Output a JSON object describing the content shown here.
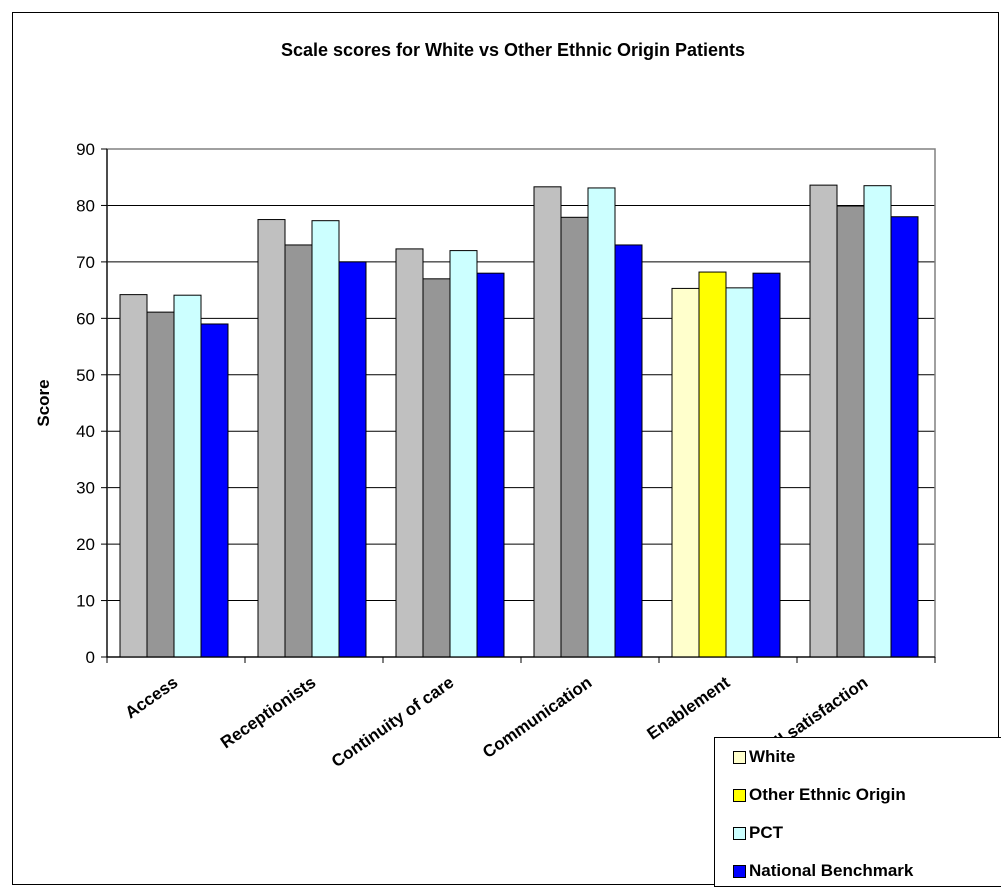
{
  "chart_data": {
    "type": "bar",
    "title": "Scale scores for White vs Other Ethnic Origin Patients",
    "ylabel": "Score",
    "xlabel": "",
    "ylim": [
      0,
      90
    ],
    "yticks": [
      "0",
      "10",
      "20",
      "30",
      "40",
      "50",
      "60",
      "70",
      "80",
      "90"
    ],
    "categories": [
      "Access",
      "Receptionists",
      "Continuity of care",
      "Communication",
      "Enablement",
      "Overall satisfaction"
    ],
    "series": [
      {
        "name": "White",
        "values": [
          64.2,
          77.5,
          72.3,
          83.3,
          65.3,
          83.6
        ]
      },
      {
        "name": "Other Ethnic Origin",
        "values": [
          61.1,
          73.0,
          67.0,
          77.9,
          68.2,
          79.9
        ]
      },
      {
        "name": "PCT",
        "values": [
          64.1,
          77.3,
          72.0,
          83.1,
          65.4,
          83.5
        ]
      },
      {
        "name": "National Benchmark",
        "values": [
          59.0,
          70.0,
          68.0,
          73.0,
          68.0,
          78.0
        ]
      }
    ],
    "bar_colors": [
      [
        "#c0c0c0",
        "#969696",
        "#ccffff",
        "#0000ff"
      ],
      [
        "#c0c0c0",
        "#969696",
        "#ccffff",
        "#0000ff"
      ],
      [
        "#c0c0c0",
        "#969696",
        "#ccffff",
        "#0000ff"
      ],
      [
        "#c0c0c0",
        "#969696",
        "#ccffff",
        "#0000ff"
      ],
      [
        "#ffffcc",
        "#ffff00",
        "#ccffff",
        "#0000ff"
      ],
      [
        "#c0c0c0",
        "#969696",
        "#ccffff",
        "#0000ff"
      ]
    ],
    "legend_colors": [
      "#ffffcc",
      "#ffff00",
      "#ccffff",
      "#0000ff"
    ],
    "legend_position": "bottom-right",
    "grid": true
  }
}
